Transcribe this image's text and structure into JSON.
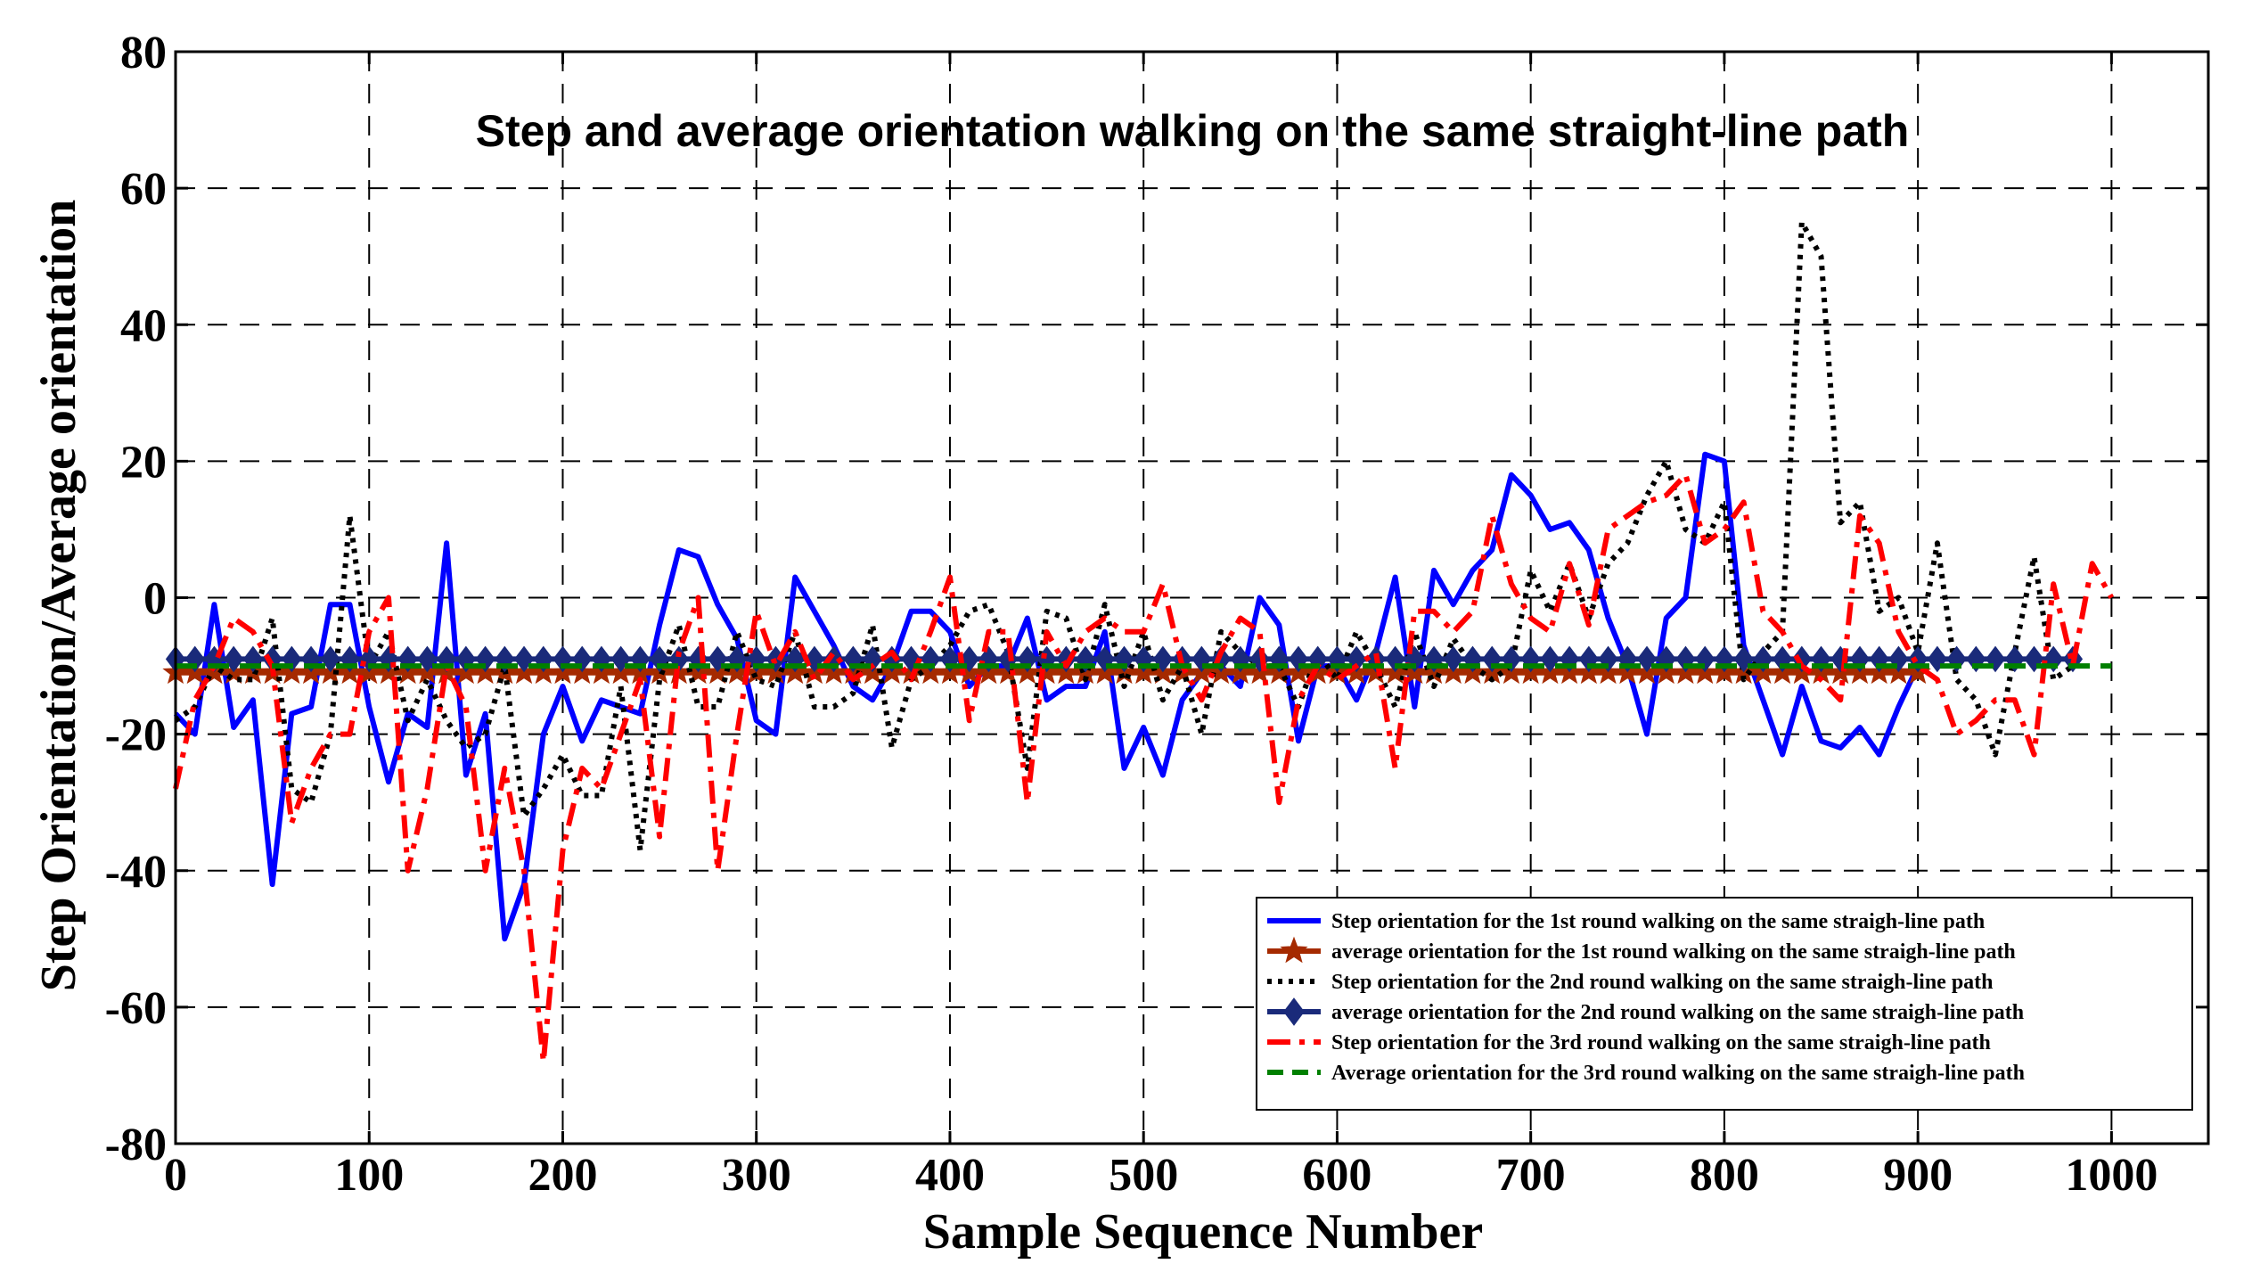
{
  "chart_data": {
    "type": "line",
    "title": "Step and average orientation walking on the same straight-line path",
    "xlabel": "Sample Sequence Number",
    "ylabel": "Step Orientation/Average orientation",
    "xlim": [
      0,
      1050
    ],
    "ylim": [
      -80,
      80
    ],
    "xticks": [
      "0",
      "100",
      "200",
      "300",
      "400",
      "500",
      "600",
      "700",
      "800",
      "900",
      "1000"
    ],
    "yticks": [
      "-80",
      "-60",
      "-40",
      "-20",
      "0",
      "20",
      "40",
      "60",
      "80"
    ],
    "grid": true,
    "legend_position": "lower-right",
    "series": [
      {
        "name": "Step orientation for the 1st round walking on the same straigh-line path",
        "style": "solid",
        "marker": "none",
        "color": "#0000ff",
        "x": [
          0,
          10,
          20,
          30,
          40,
          50,
          60,
          70,
          80,
          90,
          100,
          110,
          120,
          130,
          140,
          150,
          160,
          170,
          180,
          190,
          200,
          210,
          220,
          230,
          240,
          250,
          260,
          270,
          280,
          290,
          300,
          310,
          320,
          330,
          340,
          350,
          360,
          370,
          380,
          390,
          400,
          410,
          420,
          430,
          440,
          450,
          460,
          470,
          480,
          490,
          500,
          510,
          520,
          530,
          540,
          550,
          560,
          570,
          580,
          590,
          600,
          610,
          620,
          630,
          640,
          650,
          660,
          670,
          680,
          690,
          700,
          710,
          720,
          730,
          740,
          750,
          760,
          770,
          780,
          790,
          800,
          810,
          820,
          830,
          840,
          850,
          860,
          870,
          880,
          890,
          900
        ],
        "y": [
          -17,
          -20,
          -1,
          -19,
          -15,
          -42,
          -17,
          -16,
          -1,
          -1,
          -16,
          -27,
          -17,
          -19,
          8,
          -26,
          -17,
          -50,
          -42,
          -20,
          -13,
          -21,
          -15,
          -16,
          -17,
          -4,
          7,
          6,
          -1,
          -6,
          -18,
          -20,
          3,
          -2,
          -7,
          -13,
          -15,
          -10,
          -2,
          -2,
          -5,
          -13,
          -10,
          -10,
          -3,
          -15,
          -13,
          -13,
          -5,
          -25,
          -19,
          -26,
          -15,
          -11,
          -10,
          -13,
          0,
          -4,
          -21,
          -10,
          -10,
          -15,
          -8,
          3,
          -16,
          4,
          -1,
          4,
          7,
          18,
          15,
          10,
          11,
          7,
          -3,
          -10,
          -20,
          -3,
          0,
          21,
          20,
          -7,
          -15,
          -23,
          -13,
          -21,
          -22,
          -19,
          -23,
          -16,
          -10
        ]
      },
      {
        "name": "average orientation for the 1st round walking on the same straigh-line path",
        "style": "solid",
        "marker": "star",
        "color": "#a52a00",
        "x": [
          0,
          10,
          20,
          30,
          40,
          50,
          60,
          70,
          80,
          90,
          100,
          110,
          120,
          130,
          140,
          150,
          160,
          170,
          180,
          190,
          200,
          210,
          220,
          230,
          240,
          250,
          260,
          270,
          280,
          290,
          300,
          310,
          320,
          330,
          340,
          350,
          360,
          370,
          380,
          390,
          400,
          410,
          420,
          430,
          440,
          450,
          460,
          470,
          480,
          490,
          500,
          510,
          520,
          530,
          540,
          550,
          560,
          570,
          580,
          590,
          600,
          610,
          620,
          630,
          640,
          650,
          660,
          670,
          680,
          690,
          700,
          710,
          720,
          730,
          740,
          750,
          760,
          770,
          780,
          790,
          800,
          810,
          820,
          830,
          840,
          850,
          860,
          870,
          880,
          890,
          900
        ],
        "y": [
          -11,
          -11,
          -11,
          -11,
          -11,
          -11,
          -11,
          -11,
          -11,
          -11,
          -11,
          -11,
          -11,
          -11,
          -11,
          -11,
          -11,
          -11,
          -11,
          -11,
          -11,
          -11,
          -11,
          -11,
          -11,
          -11,
          -11,
          -11,
          -11,
          -11,
          -11,
          -11,
          -11,
          -11,
          -11,
          -11,
          -11,
          -11,
          -11,
          -11,
          -11,
          -11,
          -11,
          -11,
          -11,
          -11,
          -11,
          -11,
          -11,
          -11,
          -11,
          -11,
          -11,
          -11,
          -11,
          -11,
          -11,
          -11,
          -11,
          -11,
          -11,
          -11,
          -11,
          -11,
          -11,
          -11,
          -11,
          -11,
          -11,
          -11,
          -11,
          -11,
          -11,
          -11,
          -11,
          -11,
          -11,
          -11,
          -11,
          -11,
          -11,
          -11,
          -11,
          -11,
          -11,
          -11,
          -11,
          -11,
          -11,
          -11,
          -11
        ]
      },
      {
        "name": "Step orientation for the 2nd round walking on the same straigh-line path",
        "style": "dotted",
        "marker": "none",
        "color": "#000000",
        "x": [
          0,
          10,
          20,
          30,
          40,
          50,
          60,
          70,
          80,
          90,
          100,
          110,
          120,
          130,
          140,
          150,
          160,
          170,
          180,
          190,
          200,
          210,
          220,
          230,
          240,
          250,
          260,
          270,
          280,
          290,
          300,
          310,
          320,
          330,
          340,
          350,
          360,
          370,
          380,
          390,
          400,
          410,
          420,
          430,
          440,
          450,
          460,
          470,
          480,
          490,
          500,
          510,
          520,
          530,
          540,
          550,
          560,
          570,
          580,
          590,
          600,
          610,
          620,
          630,
          640,
          650,
          660,
          670,
          680,
          690,
          700,
          710,
          720,
          730,
          740,
          750,
          760,
          770,
          780,
          790,
          800,
          810,
          820,
          830,
          840,
          850,
          860,
          870,
          880,
          890,
          900,
          910,
          920,
          930,
          940,
          950,
          960,
          970,
          980
        ],
        "y": [
          -18,
          -16,
          -10,
          -12,
          -12,
          -3,
          -28,
          -30,
          -20,
          12,
          -10,
          -5,
          -18,
          -12,
          -18,
          -22,
          -20,
          -10,
          -32,
          -28,
          -23,
          -29,
          -29,
          -13,
          -37,
          -12,
          -4,
          -16,
          -16,
          -5,
          -12,
          -13,
          -5,
          -16,
          -16,
          -14,
          -4,
          -22,
          -12,
          -10,
          -7,
          -2,
          -1,
          -8,
          -25,
          -2,
          -3,
          -12,
          -1,
          -13,
          -5,
          -15,
          -10,
          -20,
          -5,
          -8,
          -10,
          -10,
          -16,
          -8,
          -12,
          -5,
          -10,
          -16,
          -5,
          -13,
          -6,
          -10,
          -12,
          -10,
          4,
          -2,
          5,
          -3,
          5,
          8,
          15,
          20,
          10,
          8,
          14,
          -12,
          -8,
          -5,
          55,
          50,
          11,
          14,
          -2,
          0,
          -8,
          8,
          -12,
          -15,
          -23,
          -8,
          6,
          -12,
          -10
        ]
      },
      {
        "name": "average orientation for the 2nd round walking on the same straigh-line path",
        "style": "solid",
        "marker": "diamond",
        "color": "#1a2a7a",
        "x": [
          0,
          10,
          20,
          30,
          40,
          50,
          60,
          70,
          80,
          90,
          100,
          110,
          120,
          130,
          140,
          150,
          160,
          170,
          180,
          190,
          200,
          210,
          220,
          230,
          240,
          250,
          260,
          270,
          280,
          290,
          300,
          310,
          320,
          330,
          340,
          350,
          360,
          370,
          380,
          390,
          400,
          410,
          420,
          430,
          440,
          450,
          460,
          470,
          480,
          490,
          500,
          510,
          520,
          530,
          540,
          550,
          560,
          570,
          580,
          590,
          600,
          610,
          620,
          630,
          640,
          650,
          660,
          670,
          680,
          690,
          700,
          710,
          720,
          730,
          740,
          750,
          760,
          770,
          780,
          790,
          800,
          810,
          820,
          830,
          840,
          850,
          860,
          870,
          880,
          890,
          900,
          910,
          920,
          930,
          940,
          950,
          960,
          970,
          980
        ],
        "y": [
          -9,
          -9,
          -9,
          -9,
          -9,
          -9,
          -9,
          -9,
          -9,
          -9,
          -9,
          -9,
          -9,
          -9,
          -9,
          -9,
          -9,
          -9,
          -9,
          -9,
          -9,
          -9,
          -9,
          -9,
          -9,
          -9,
          -9,
          -9,
          -9,
          -9,
          -9,
          -9,
          -9,
          -9,
          -9,
          -9,
          -9,
          -9,
          -9,
          -9,
          -9,
          -9,
          -9,
          -9,
          -9,
          -9,
          -9,
          -9,
          -9,
          -9,
          -9,
          -9,
          -9,
          -9,
          -9,
          -9,
          -9,
          -9,
          -9,
          -9,
          -9,
          -9,
          -9,
          -9,
          -9,
          -9,
          -9,
          -9,
          -9,
          -9,
          -9,
          -9,
          -9,
          -9,
          -9,
          -9,
          -9,
          -9,
          -9,
          -9,
          -9,
          -9,
          -9,
          -9,
          -9,
          -9,
          -9,
          -9,
          -9,
          -9,
          -9,
          -9,
          -9,
          -9,
          -9,
          -9,
          -9,
          -9,
          -9
        ]
      },
      {
        "name": "Step orientation for the 3rd round walking on the same straigh-line path",
        "style": "dashdot",
        "marker": "none",
        "color": "#ff0000",
        "x": [
          0,
          10,
          20,
          30,
          40,
          50,
          60,
          70,
          80,
          90,
          100,
          110,
          120,
          130,
          140,
          150,
          160,
          170,
          180,
          190,
          200,
          210,
          220,
          230,
          240,
          250,
          260,
          270,
          280,
          290,
          300,
          310,
          320,
          330,
          340,
          350,
          360,
          370,
          380,
          390,
          400,
          410,
          420,
          430,
          440,
          450,
          460,
          470,
          480,
          490,
          500,
          510,
          520,
          530,
          540,
          550,
          560,
          570,
          580,
          590,
          600,
          610,
          620,
          630,
          640,
          650,
          660,
          670,
          680,
          690,
          700,
          710,
          720,
          730,
          740,
          750,
          760,
          770,
          780,
          790,
          800,
          810,
          820,
          830,
          840,
          850,
          860,
          870,
          880,
          890,
          900,
          910,
          920,
          930,
          940,
          950,
          960,
          970,
          980,
          990,
          1000
        ],
        "y": [
          -28,
          -15,
          -10,
          -3,
          -5,
          -10,
          -33,
          -25,
          -20,
          -20,
          -5,
          0,
          -40,
          -28,
          -10,
          -16,
          -40,
          -25,
          -40,
          -68,
          -37,
          -25,
          -28,
          -20,
          -12,
          -35,
          -8,
          0,
          -40,
          -20,
          -2,
          -10,
          -5,
          -12,
          -8,
          -12,
          -10,
          -8,
          -12,
          -5,
          3,
          -18,
          -5,
          -5,
          -30,
          -5,
          -10,
          -5,
          -3,
          -5,
          -5,
          2,
          -10,
          -15,
          -8,
          -3,
          -5,
          -30,
          -15,
          -10,
          -12,
          -10,
          -8,
          -25,
          -2,
          -2,
          -5,
          -2,
          12,
          2,
          -3,
          -5,
          5,
          -4,
          10,
          12,
          14,
          15,
          18,
          8,
          10,
          14,
          -2,
          -5,
          -10,
          -12,
          -15,
          12,
          8,
          -5,
          -10,
          -12,
          -20,
          -18,
          -15,
          -15,
          -23,
          2,
          -10,
          5,
          0
        ]
      },
      {
        "name": "Average orientation for the 3rd round walking on the same straigh-line path",
        "style": "dashed",
        "marker": "none",
        "color": "#008000",
        "x": [
          0,
          1000
        ],
        "y": [
          -10,
          -10
        ]
      }
    ]
  }
}
